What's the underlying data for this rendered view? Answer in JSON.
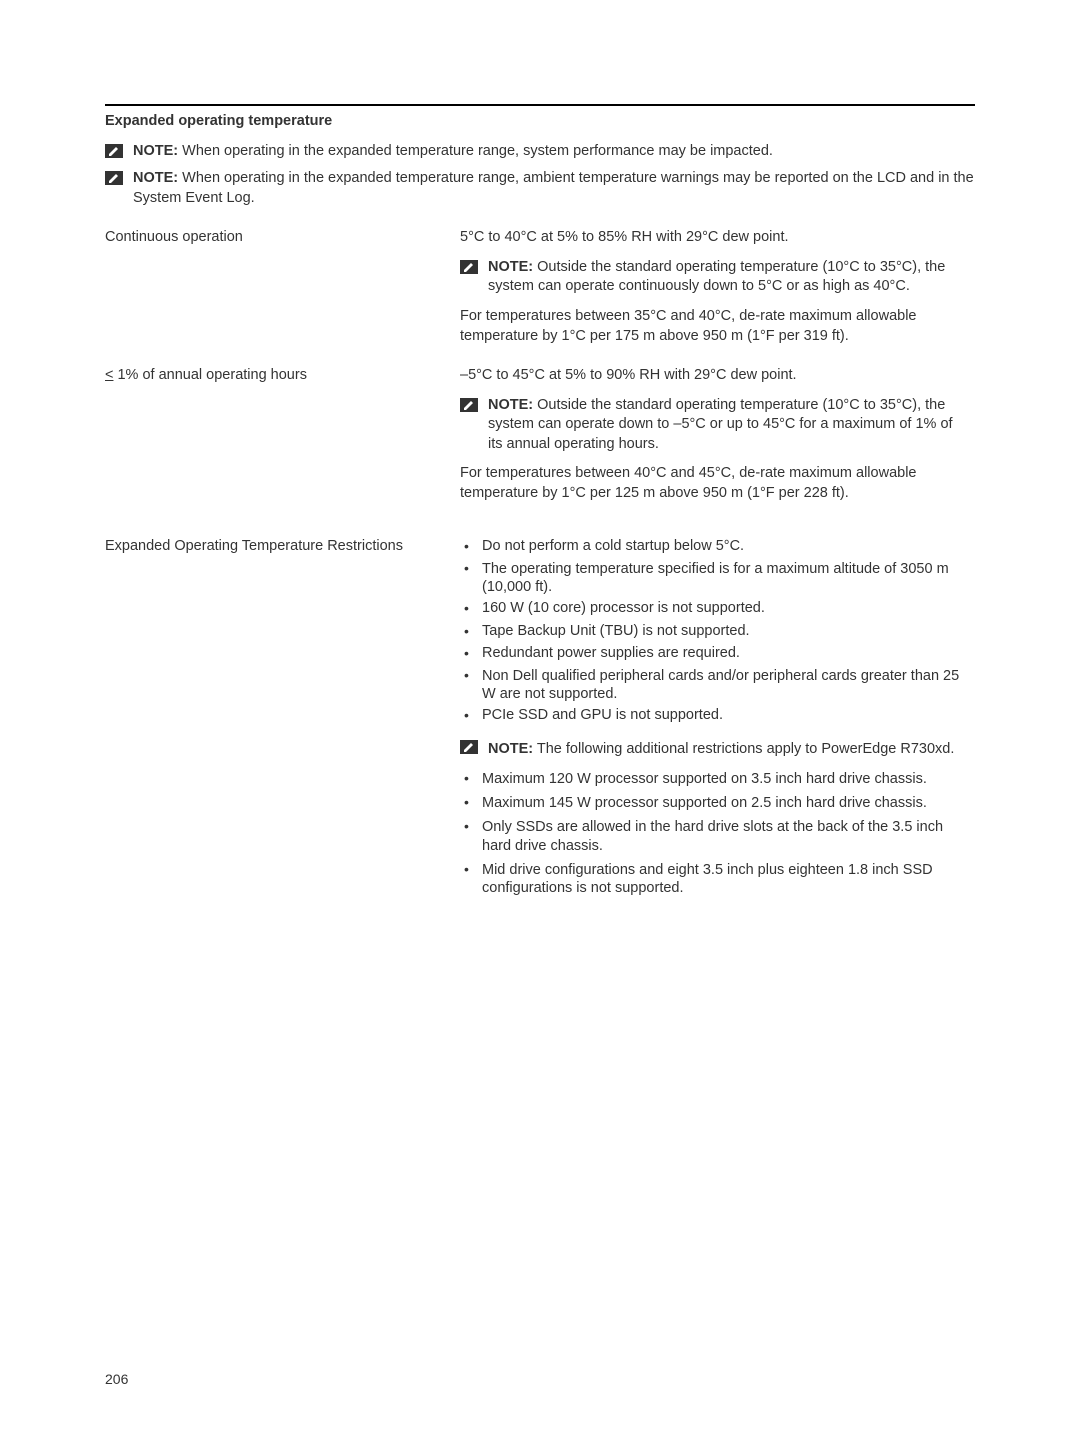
{
  "section_title": "Expanded operating temperature",
  "top_notes": [
    {
      "label": "NOTE:",
      "text": " When operating in the expanded temperature range, system performance may be impacted."
    },
    {
      "label": "NOTE:",
      "text": " When operating in the expanded temperature range, ambient temperature warnings may be reported on the LCD and in the System Event Log."
    }
  ],
  "rows": {
    "continuous": {
      "left": "Continuous operation",
      "line1": "5°C to 40°C at 5% to 85% RH with 29°C dew point.",
      "note_label": "NOTE:",
      "note_text": " Outside the standard operating temperature (10°C to 35°C), the system can operate continuously down to 5°C or as high as 40°C.",
      "para": "For temperatures between 35°C and 40°C, de-rate maximum allowable temperature by 1°C per 175 m above 950 m (1°F per 319 ft)."
    },
    "annual": {
      "left_prefix": "<",
      "left_rest": " 1% of annual operating hours",
      "line1": "–5°C to 45°C at 5% to 90% RH with 29°C dew point.",
      "note_label": "NOTE:",
      "note_text": " Outside the standard operating temperature (10°C to 35°C), the system can operate down to –5°C or up to 45°C for a maximum of 1% of its annual operating hours.",
      "para": "For temperatures between 40°C and 45°C, de-rate maximum allowable temperature by 1°C per 125 m above 950 m (1°F per 228 ft)."
    },
    "restrictions": {
      "left": "Expanded Operating Temperature Restrictions",
      "bullets1": [
        "Do not perform a cold startup below 5°C.",
        "The operating temperature specified is for a maximum altitude of 3050 m (10,000 ft).",
        "160 W (10 core) processor is not supported.",
        "Tape Backup Unit (TBU) is not supported.",
        "Redundant power supplies are required.",
        "Non Dell qualified peripheral cards and/or peripheral cards greater than 25 W are not supported.",
        "PCIe SSD and GPU is not supported."
      ],
      "note_label": "NOTE:",
      "note_text": " The following additional restrictions apply to PowerEdge R730xd.",
      "bullets2": [
        "Maximum 120 W processor supported on 3.5 inch hard drive chassis.",
        "Maximum 145 W processor supported on 2.5 inch hard drive chassis.",
        "Only SSDs are allowed in the hard drive slots at the back of the 3.5 inch hard drive chassis.",
        "Mid drive configurations and eight 3.5 inch plus eighteen 1.8 inch SSD configurations is not supported."
      ]
    }
  },
  "page_number": "206"
}
